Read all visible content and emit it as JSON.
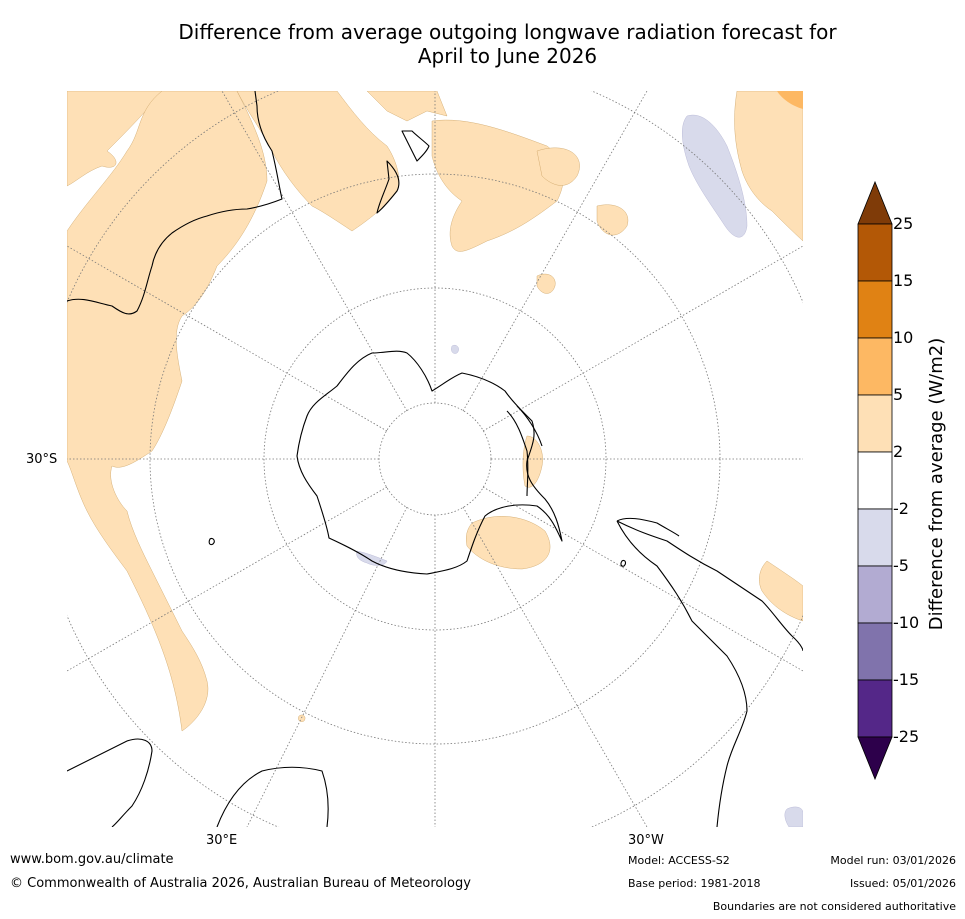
{
  "title_line1": "Difference from average outgoing longwave radiation forecast for",
  "title_line2": "April to June 2026",
  "map": {
    "projection": "south-polar-stereographic",
    "lat_label": "30°S",
    "lon_label_east": "30°E",
    "lon_label_west": "30°W",
    "land_color": "#000000",
    "graticule_color": "#777777"
  },
  "colorbar": {
    "label": "Difference from average (W/m2)",
    "ticks": [
      "25",
      "15",
      "10",
      "5",
      "2",
      "-2",
      "-5",
      "-10",
      "-15",
      "-25"
    ],
    "colors_top_to_bottom": [
      "#7f3b08",
      "#b35806",
      "#e08214",
      "#fdb863",
      "#fee0b6",
      "#ffffff",
      "#d8daeb",
      "#b2abd2",
      "#8073ac",
      "#542788",
      "#2d004b"
    ]
  },
  "footer": {
    "url": "www.bom.gov.au/climate",
    "copyright": "© Commonwealth of Australia 2026, Australian Bureau of Meteorology",
    "model": "Model: ACCESS-S2",
    "base_period": "Base period: 1981-2018",
    "model_run": "Model run: 03/01/2026",
    "issued": "Issued: 05/01/2026",
    "disclaimer": "Boundaries are not considered authoritative"
  }
}
